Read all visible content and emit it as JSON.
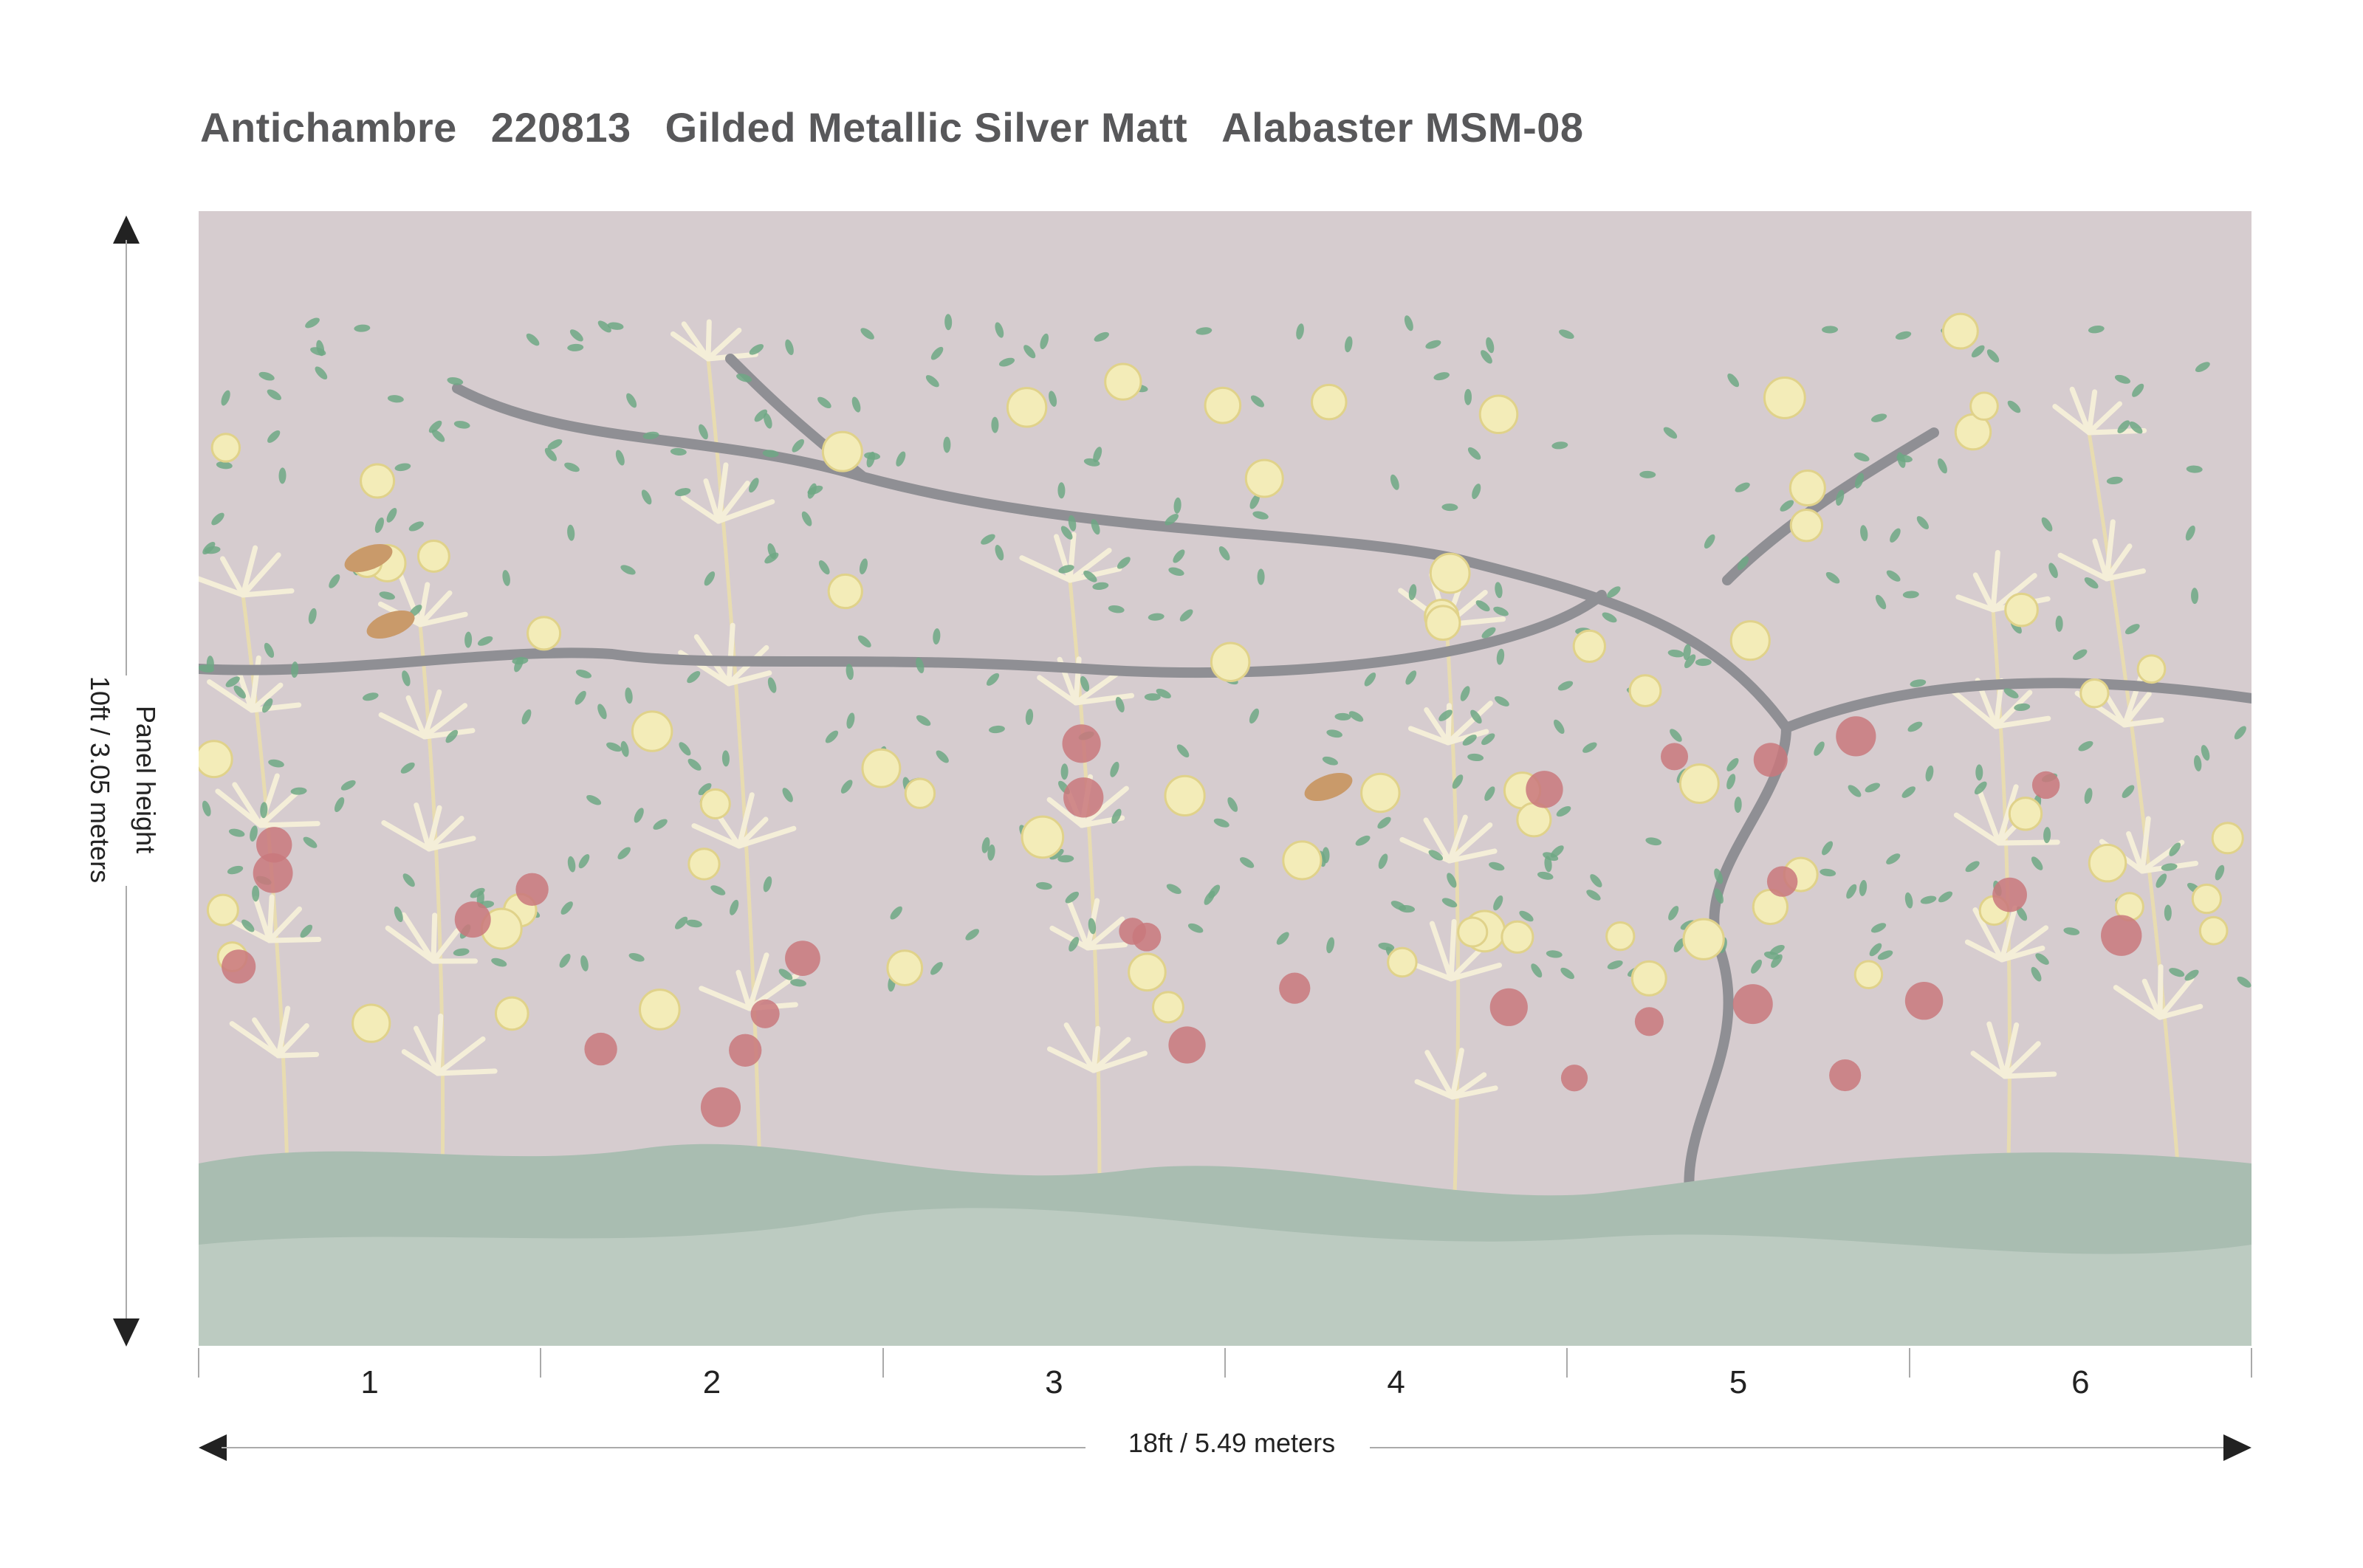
{
  "title": {
    "collection": "Antichambre",
    "code": "220813",
    "finish": "Gilded Metallic Silver Matt",
    "colorway": "Alabaster MSM-08"
  },
  "panels": [
    "1",
    "2",
    "3",
    "4",
    "5",
    "6"
  ],
  "width_label": "18ft / 5.49 meters",
  "height_label": {
    "caption": "Panel height",
    "value": "10ft / 3.05 meters"
  },
  "colors": {
    "background": "#d6cccf",
    "hills": "#a9bdb1",
    "flower_yellow": "#f3ecb8",
    "flower_pink": "#c9787c",
    "leaf": "#6fa885",
    "branch": "#8f8f94",
    "bamboo": "#f4eed8"
  }
}
